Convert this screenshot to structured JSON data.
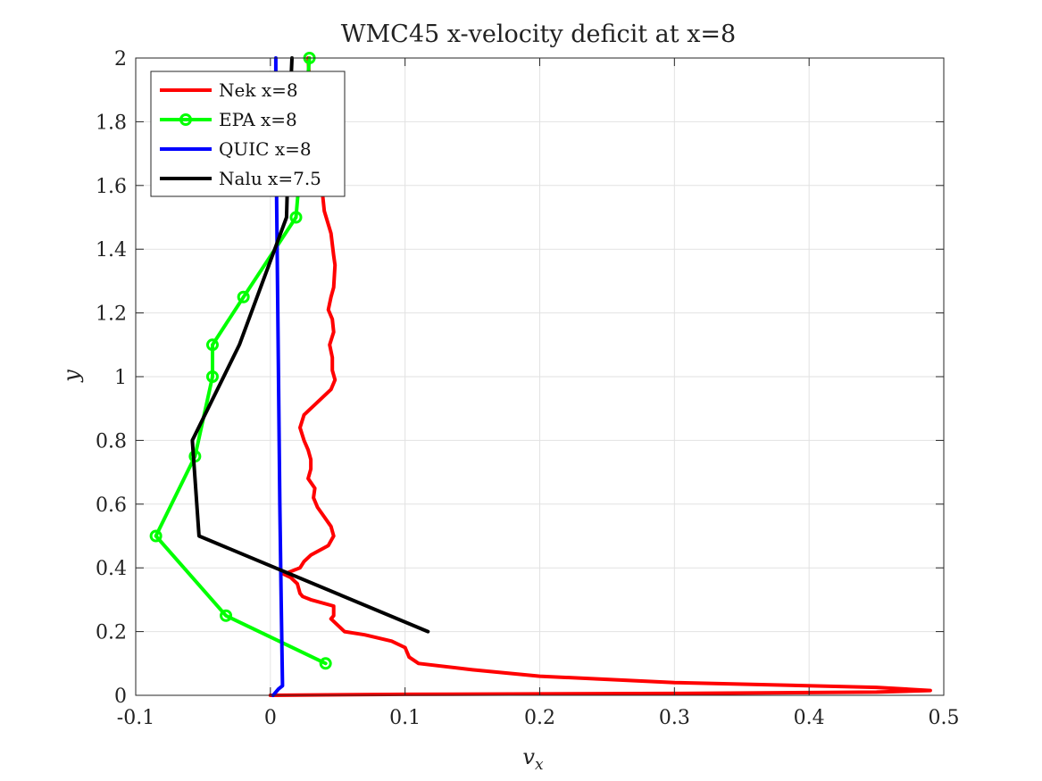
{
  "chart_data": {
    "type": "line",
    "title": "WMC45 x-velocity deficit at x=8",
    "xlabel_main": "v",
    "xlabel_sub": "x",
    "ylabel": "y",
    "xlim": [
      -0.1,
      0.5
    ],
    "ylim": [
      0,
      2
    ],
    "xticks": [
      "-0.1",
      "0",
      "0.1",
      "0.2",
      "0.3",
      "0.4",
      "0.5"
    ],
    "yticks": [
      "0",
      "0.2",
      "0.4",
      "0.6",
      "0.8",
      "1",
      "1.2",
      "1.4",
      "1.6",
      "1.8",
      "2"
    ],
    "grid": true,
    "legend_position": "top-left",
    "series": [
      {
        "name": "Nek x=8",
        "color": "#ff0000",
        "marker": "none",
        "x": [
          0.0,
          0.1,
          0.3,
          0.45,
          0.49,
          0.45,
          0.3,
          0.2,
          0.15,
          0.11,
          0.103,
          0.1,
          0.09,
          0.07,
          0.055,
          0.045,
          0.047,
          0.047,
          0.03,
          0.024,
          0.022,
          0.02,
          0.015,
          0.01,
          0.022,
          0.025,
          0.03,
          0.043,
          0.047,
          0.045,
          0.04,
          0.035,
          0.032,
          0.033,
          0.028,
          0.03,
          0.03,
          0.028,
          0.025,
          0.022,
          0.025,
          0.035,
          0.045,
          0.048,
          0.046,
          0.046,
          0.044,
          0.047,
          0.046,
          0.043,
          0.045,
          0.047,
          0.048,
          0.047,
          0.045,
          0.04,
          0.038,
          0.035,
          0.03,
          0.028
        ],
        "y": [
          0.0,
          0.003,
          0.006,
          0.01,
          0.015,
          0.025,
          0.04,
          0.06,
          0.08,
          0.1,
          0.12,
          0.15,
          0.17,
          0.19,
          0.2,
          0.24,
          0.25,
          0.28,
          0.3,
          0.31,
          0.32,
          0.35,
          0.37,
          0.38,
          0.4,
          0.42,
          0.44,
          0.47,
          0.5,
          0.53,
          0.56,
          0.59,
          0.62,
          0.65,
          0.68,
          0.71,
          0.74,
          0.77,
          0.8,
          0.84,
          0.88,
          0.92,
          0.96,
          0.99,
          1.02,
          1.06,
          1.1,
          1.14,
          1.18,
          1.21,
          1.25,
          1.28,
          1.35,
          1.38,
          1.45,
          1.52,
          1.6,
          1.7,
          1.85,
          2.0
        ]
      },
      {
        "name": "EPA x=8",
        "color": "#00ff00",
        "marker": "circle",
        "x": [
          0.041,
          -0.033,
          -0.085,
          -0.056,
          -0.043,
          -0.043,
          -0.02,
          0.019,
          0.029
        ],
        "y": [
          0.1,
          0.25,
          0.5,
          0.75,
          1.0,
          1.1,
          1.25,
          1.5,
          2.0
        ]
      },
      {
        "name": "QUIC x=8",
        "color": "#0000ff",
        "marker": "none",
        "x": [
          0.002,
          0.006,
          0.009,
          0.008,
          0.007,
          0.006,
          0.005,
          0.004,
          0.004
        ],
        "y": [
          0.0,
          0.02,
          0.03,
          0.3,
          0.6,
          1.0,
          1.4,
          1.8,
          2.0
        ]
      },
      {
        "name": "Nalu x=7.5",
        "color": "#000000",
        "marker": "none",
        "x": [
          0.117,
          -0.053,
          -0.058,
          -0.023,
          0.012,
          0.014,
          0.016
        ],
        "y": [
          0.2,
          0.5,
          0.8,
          1.1,
          1.5,
          1.8,
          2.0
        ]
      }
    ]
  }
}
